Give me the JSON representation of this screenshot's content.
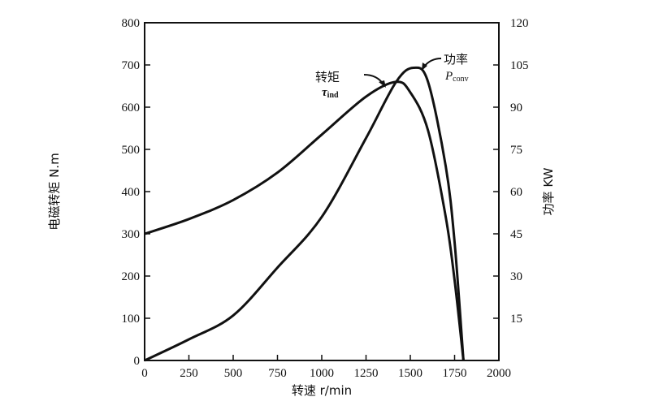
{
  "chart_data": {
    "type": "line",
    "xlabel": "转速 r/min",
    "ylabel": "电磁转矩 N.m",
    "y2label": "功率 KW",
    "xlim": [
      0,
      2000
    ],
    "ylim": [
      0,
      800
    ],
    "y2lim": [
      0,
      120
    ],
    "xticks": [
      0,
      250,
      500,
      750,
      1000,
      1250,
      1500,
      1750,
      2000
    ],
    "yticks": [
      0,
      100,
      200,
      300,
      400,
      500,
      600,
      700,
      800
    ],
    "y2ticks": [
      15,
      30,
      45,
      60,
      75,
      90,
      105,
      120
    ],
    "grid": false,
    "series": [
      {
        "name": "转矩 τind",
        "label_main": "转矩",
        "label_symbol": "τ",
        "label_sub": "ind",
        "axis": "left",
        "x": [
          0,
          250,
          500,
          750,
          1000,
          1250,
          1420,
          1500,
          1600,
          1700,
          1750,
          1800
        ],
        "values": [
          300,
          335,
          380,
          445,
          535,
          625,
          660,
          635,
          545,
          340,
          190,
          0
        ]
      },
      {
        "name": "功率 Pconv",
        "label_main": "功率",
        "label_symbol": "P",
        "label_sub": "conv",
        "axis": "right",
        "x": [
          0,
          250,
          500,
          750,
          1000,
          1250,
          1420,
          1520,
          1600,
          1700,
          1750,
          1800
        ],
        "values": [
          0,
          7.5,
          16,
          33,
          51,
          79,
          99,
          104,
          99,
          69,
          42,
          0
        ]
      }
    ],
    "colors": {
      "line": "#111111",
      "axis": "#111111"
    }
  }
}
